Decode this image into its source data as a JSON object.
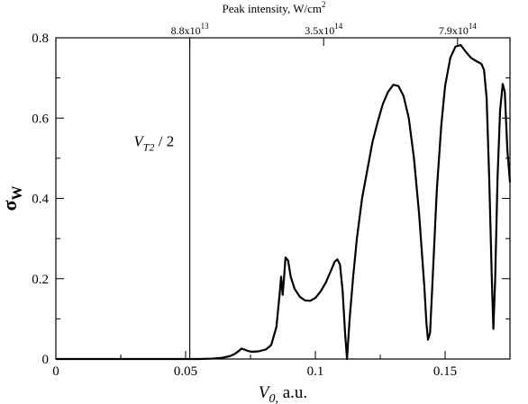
{
  "chart_data": {
    "type": "line",
    "xlabel": {
      "main": "V",
      "sub": "0,",
      "suffix": " a.u."
    },
    "ylabel": {
      "main": "σ",
      "sub": "W"
    },
    "top_axis_title": {
      "main": "Peak intensity, W/cm",
      "sup": "2"
    },
    "xlim": [
      0,
      0.175
    ],
    "ylim": [
      0,
      0.8
    ],
    "x_ticks": [
      {
        "value": 0,
        "label": "0"
      },
      {
        "value": 0.05,
        "label": "0.05"
      },
      {
        "value": 0.1,
        "label": "0.1"
      },
      {
        "value": 0.15,
        "label": "0.15"
      }
    ],
    "y_ticks": [
      {
        "value": 0,
        "label": "0"
      },
      {
        "value": 0.2,
        "label": "0.2"
      },
      {
        "value": 0.4,
        "label": "0.4"
      },
      {
        "value": 0.6,
        "label": "0.6"
      },
      {
        "value": 0.8,
        "label": "0.8"
      }
    ],
    "top_ticks": [
      {
        "value": 0.0516,
        "mantissa": "8.8x10",
        "exp": "13"
      },
      {
        "value": 0.1032,
        "mantissa": "3.5x10",
        "exp": "14"
      },
      {
        "value": 0.1548,
        "mantissa": "7.9x10",
        "exp": "14"
      }
    ],
    "vertical_line": {
      "x": 0.0516
    },
    "annotation": {
      "main": "V",
      "sub": "T2",
      "suffix": " / 2",
      "x": 0.03,
      "y": 0.53
    },
    "grid": false,
    "series": [
      {
        "color": "#000000",
        "points": [
          [
            0.0,
            0.0
          ],
          [
            0.055,
            0.0
          ],
          [
            0.06,
            0.001
          ],
          [
            0.064,
            0.003
          ],
          [
            0.067,
            0.007
          ],
          [
            0.069,
            0.013
          ],
          [
            0.0705,
            0.02
          ],
          [
            0.0715,
            0.026
          ],
          [
            0.0725,
            0.024
          ],
          [
            0.074,
            0.02
          ],
          [
            0.0755,
            0.018
          ],
          [
            0.078,
            0.019
          ],
          [
            0.081,
            0.024
          ],
          [
            0.083,
            0.035
          ],
          [
            0.085,
            0.08
          ],
          [
            0.0862,
            0.16
          ],
          [
            0.0868,
            0.205
          ],
          [
            0.0874,
            0.16
          ],
          [
            0.0879,
            0.2
          ],
          [
            0.0885,
            0.253
          ],
          [
            0.0895,
            0.245
          ],
          [
            0.0905,
            0.205
          ],
          [
            0.092,
            0.175
          ],
          [
            0.094,
            0.155
          ],
          [
            0.096,
            0.146
          ],
          [
            0.098,
            0.145
          ],
          [
            0.1,
            0.152
          ],
          [
            0.102,
            0.168
          ],
          [
            0.104,
            0.19
          ],
          [
            0.106,
            0.22
          ],
          [
            0.1075,
            0.243
          ],
          [
            0.1085,
            0.248
          ],
          [
            0.1095,
            0.235
          ],
          [
            0.1105,
            0.17
          ],
          [
            0.1115,
            0.06
          ],
          [
            0.1122,
            0.0
          ],
          [
            0.1132,
            0.1
          ],
          [
            0.1145,
            0.2
          ],
          [
            0.116,
            0.3
          ],
          [
            0.118,
            0.4
          ],
          [
            0.12,
            0.47
          ],
          [
            0.122,
            0.54
          ],
          [
            0.124,
            0.59
          ],
          [
            0.126,
            0.635
          ],
          [
            0.128,
            0.665
          ],
          [
            0.13,
            0.683
          ],
          [
            0.132,
            0.68
          ],
          [
            0.134,
            0.655
          ],
          [
            0.136,
            0.6
          ],
          [
            0.138,
            0.5
          ],
          [
            0.14,
            0.36
          ],
          [
            0.142,
            0.18
          ],
          [
            0.1428,
            0.09
          ],
          [
            0.1434,
            0.048
          ],
          [
            0.1442,
            0.065
          ],
          [
            0.1452,
            0.2
          ],
          [
            0.1468,
            0.42
          ],
          [
            0.1485,
            0.58
          ],
          [
            0.15,
            0.68
          ],
          [
            0.152,
            0.75
          ],
          [
            0.154,
            0.778
          ],
          [
            0.156,
            0.782
          ],
          [
            0.158,
            0.765
          ],
          [
            0.16,
            0.75
          ],
          [
            0.162,
            0.742
          ],
          [
            0.164,
            0.735
          ],
          [
            0.165,
            0.72
          ],
          [
            0.166,
            0.65
          ],
          [
            0.167,
            0.45
          ],
          [
            0.168,
            0.2
          ],
          [
            0.1686,
            0.075
          ],
          [
            0.1693,
            0.2
          ],
          [
            0.1702,
            0.45
          ],
          [
            0.1712,
            0.62
          ],
          [
            0.1722,
            0.685
          ],
          [
            0.173,
            0.665
          ],
          [
            0.174,
            0.52
          ],
          [
            0.175,
            0.44
          ]
        ]
      }
    ]
  }
}
